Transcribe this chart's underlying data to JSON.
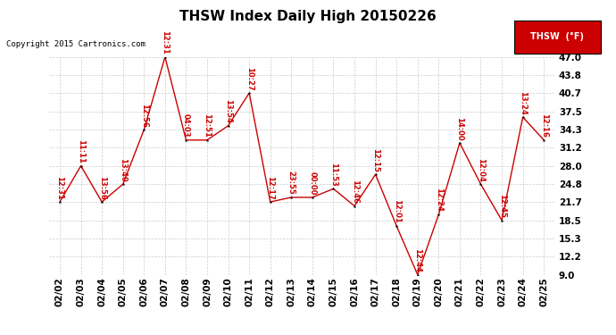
{
  "title": "THSW Index Daily High 20150226",
  "copyright_text": "Copyright 2015 Cartronics.com",
  "legend_label": "THSW  (°F)",
  "legend_bg": "#cc0000",
  "legend_fg": "#ffffff",
  "dates": [
    "02/02",
    "02/03",
    "02/04",
    "02/05",
    "02/06",
    "02/07",
    "02/08",
    "02/09",
    "02/10",
    "02/11",
    "02/12",
    "02/13",
    "02/14",
    "02/15",
    "02/16",
    "02/17",
    "02/18",
    "02/19",
    "02/20",
    "02/21",
    "02/22",
    "02/23",
    "02/24",
    "02/25"
  ],
  "values": [
    21.7,
    28.0,
    21.7,
    24.8,
    34.3,
    47.0,
    32.5,
    32.5,
    35.0,
    40.7,
    21.7,
    22.5,
    22.5,
    24.0,
    21.0,
    26.5,
    17.5,
    9.0,
    19.5,
    32.0,
    24.8,
    18.5,
    36.5,
    32.5
  ],
  "time_labels": [
    "12:31",
    "11:11",
    "13:56",
    "13:40",
    "12:56",
    "12:31",
    "04:03",
    "12:51",
    "13:54",
    "10:27",
    "12:17",
    "23:55",
    "00:00",
    "11:53",
    "12:46",
    "12:15",
    "12:01",
    "12:44",
    "12:24",
    "14:00",
    "12:04",
    "12:45",
    "13:24",
    "12:16"
  ],
  "ylim": [
    9.0,
    47.0
  ],
  "yticks": [
    9.0,
    12.2,
    15.3,
    18.5,
    21.7,
    24.8,
    28.0,
    31.2,
    34.3,
    37.5,
    40.7,
    43.8,
    47.0
  ],
  "bg_color": "#ffffff",
  "line_color": "#cc0000",
  "marker_color": "#000000",
  "grid_color": "#cccccc",
  "label_color": "#cc0000",
  "title_color": "#000000",
  "title_fontsize": 11,
  "copyright_fontsize": 6.5,
  "tick_fontsize": 7.5,
  "label_fontsize": 6.0
}
